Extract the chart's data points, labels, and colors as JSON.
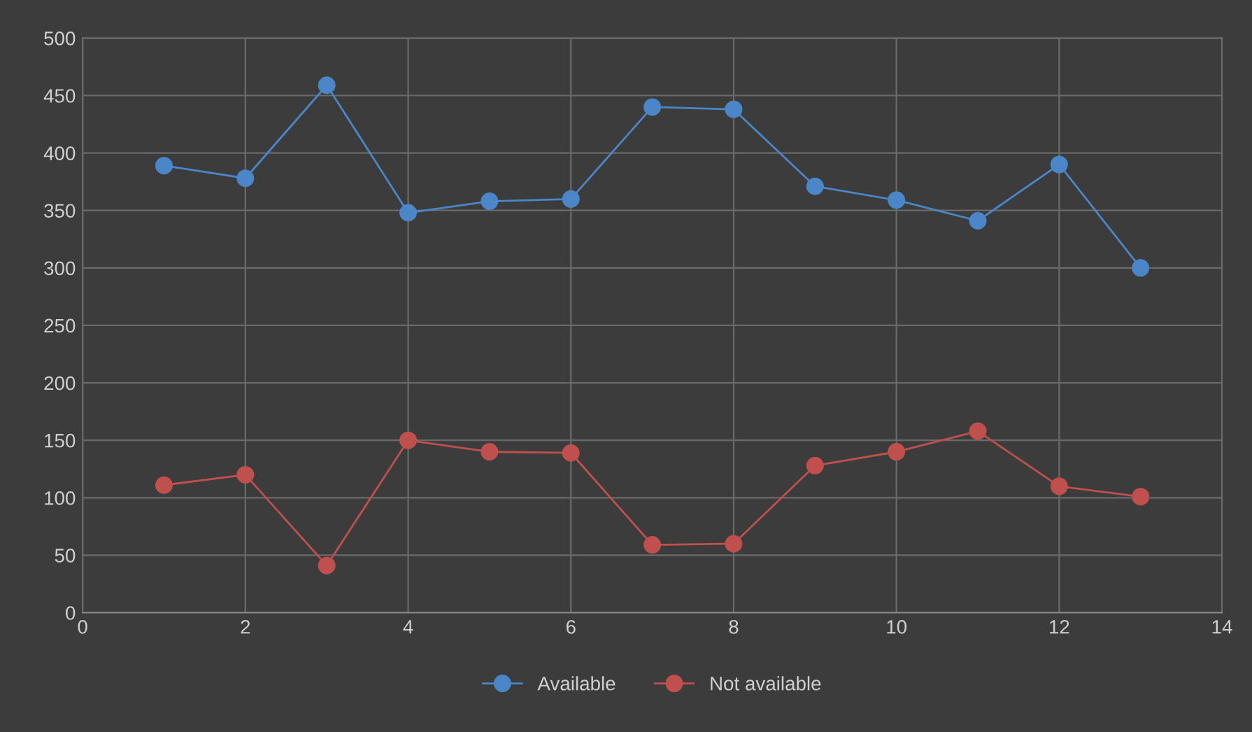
{
  "chart_data": {
    "type": "line",
    "x": [
      1,
      2,
      3,
      4,
      5,
      6,
      7,
      8,
      9,
      10,
      11,
      12,
      13
    ],
    "series": [
      {
        "name": "Available",
        "color": "#4a86c8",
        "values": [
          389,
          378,
          459,
          348,
          358,
          360,
          440,
          438,
          371,
          359,
          341,
          390,
          300
        ]
      },
      {
        "name": "Not available",
        "color": "#c0504d",
        "values": [
          111,
          120,
          41,
          150,
          140,
          139,
          59,
          60,
          128,
          140,
          158,
          110,
          101
        ]
      }
    ],
    "xlim": [
      0,
      14
    ],
    "xticks": [
      0,
      2,
      4,
      6,
      8,
      10,
      12,
      14
    ],
    "ylim": [
      0,
      500
    ],
    "yticks": [
      0,
      50,
      100,
      150,
      200,
      250,
      300,
      350,
      400,
      450,
      500
    ],
    "grid": true,
    "legend": "bottom",
    "marker": "circle",
    "line_style": "solid"
  }
}
